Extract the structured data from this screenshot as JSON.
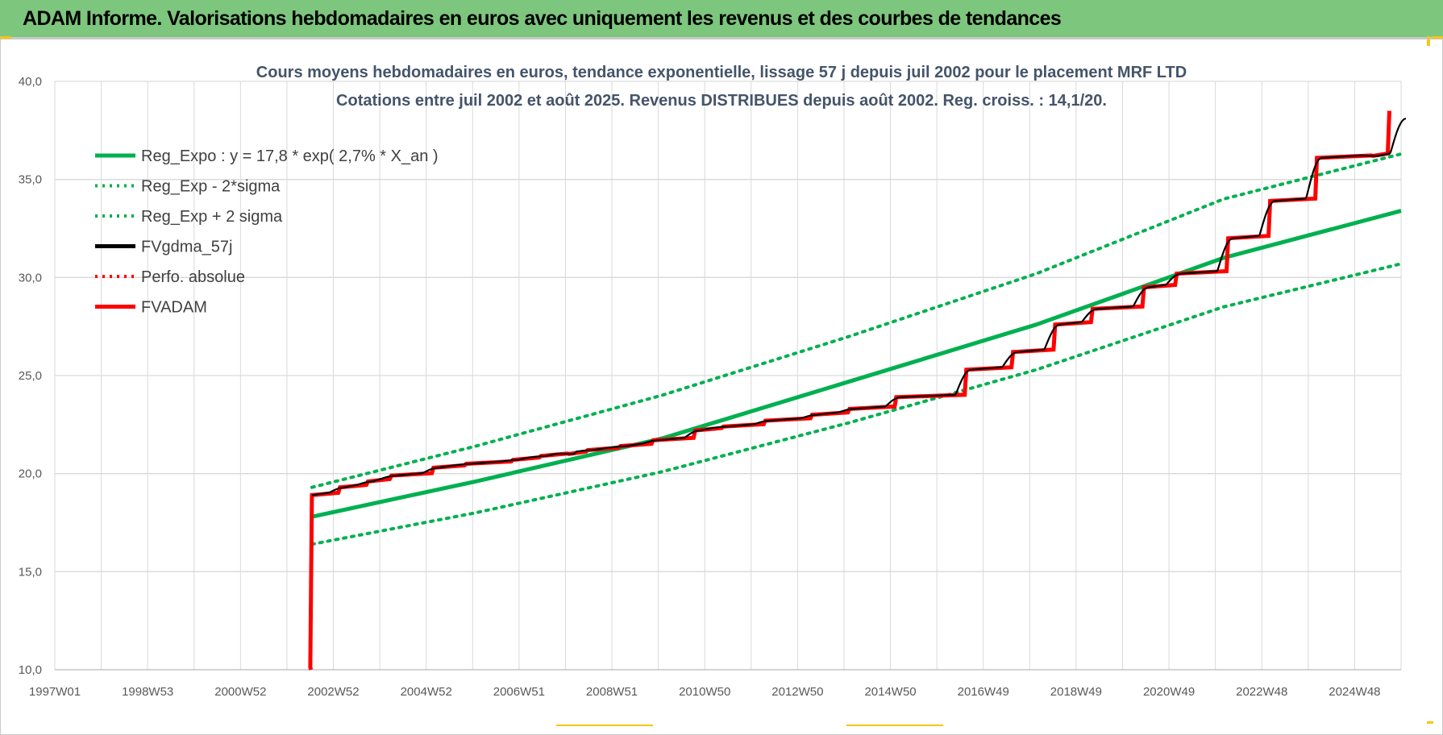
{
  "header": {
    "title": "ADAM Informe. Valorisations hebdomadaires en euros avec uniquement les revenus et des courbes de tendances"
  },
  "colors": {
    "header_bg": "#7dc67d",
    "reg_green": "#00b050",
    "fvgdma_black": "#000000",
    "fvadam_red": "#ff0000",
    "perfo_red": "#ff0000",
    "grid": "#d9d9d9"
  },
  "chart_data": {
    "type": "line",
    "title_line1": "Cours moyens hebdomadaires en euros, tendance exponentielle, lissage 57 j depuis juil 2002 pour le placement MRF LTD",
    "title_line2": "Cotations entre juil 2002 et août 2025. Revenus DISTRIBUES depuis août 2002. Reg. croiss. : 14,1/20.",
    "x_tick_labels": [
      "1997W01",
      "1998W53",
      "2000W52",
      "2002W52",
      "2004W52",
      "2006W51",
      "2008W51",
      "2010W50",
      "2012W50",
      "2014W50",
      "2016W49",
      "2018W49",
      "2020W49",
      "2022W48",
      "2024W48"
    ],
    "xlim": [
      1997.0,
      2025.8
    ],
    "ylim": [
      10,
      40
    ],
    "y_ticks": [
      "10,0",
      "15,0",
      "20,0",
      "25,0",
      "30,0",
      "35,0",
      "40,0"
    ],
    "grid": true,
    "legend_position": "top-left",
    "legend": [
      {
        "label": "Reg_Expo : y = 17,8 * exp( 2,7% *  X_an )",
        "color": "#00b050",
        "style": "solid"
      },
      {
        "label": "Reg_Exp - 2*sigma",
        "color": "#00b050",
        "style": "dotted"
      },
      {
        "label": "Reg_Exp + 2 sigma",
        "color": "#00b050",
        "style": "dotted"
      },
      {
        "label": "FVgdma_57j",
        "color": "#000000",
        "style": "solid"
      },
      {
        "label": "Perfo. absolue",
        "color": "#ff0000",
        "style": "dotted"
      },
      {
        "label": "FVADAM",
        "color": "#ff0000",
        "style": "solid"
      }
    ],
    "series": [
      {
        "name": "Reg_Expo : y = 17,8 * exp( 2,7% *  X_an )",
        "x": [
          2002.5,
          2006.0,
          2010.0,
          2014.0,
          2018.0,
          2022.0,
          2025.8
        ],
        "y": [
          17.8,
          19.6,
          21.8,
          24.7,
          27.6,
          31.0,
          33.4
        ]
      },
      {
        "name": "Reg_Exp - 2*sigma",
        "x": [
          2002.5,
          2006.0,
          2010.0,
          2014.0,
          2018.0,
          2022.0,
          2025.8
        ],
        "y": [
          16.4,
          18.0,
          20.1,
          22.6,
          25.3,
          28.5,
          30.7
        ]
      },
      {
        "name": "Reg_Exp + 2 sigma",
        "x": [
          2002.5,
          2006.0,
          2010.0,
          2014.0,
          2018.0,
          2022.0,
          2025.8
        ],
        "y": [
          19.3,
          21.4,
          24.0,
          27.0,
          30.2,
          34.0,
          36.3
        ]
      },
      {
        "name": "FVADAM",
        "x": [
          2002.48,
          2002.5,
          2003.1,
          2003.7,
          2004.2,
          2005.1,
          2005.8,
          2006.8,
          2007.4,
          2008.0,
          2008.4,
          2009.1,
          2009.8,
          2010.7,
          2011.3,
          2012.2,
          2013.2,
          2014.0,
          2015.0,
          2016.5,
          2017.5,
          2018.4,
          2019.2,
          2020.3,
          2021.0,
          2022.1,
          2023.0,
          2024.0,
          2025.2,
          2025.55
        ],
        "y": [
          10.0,
          18.9,
          19.3,
          19.6,
          19.9,
          20.3,
          20.5,
          20.7,
          20.9,
          21.0,
          21.2,
          21.4,
          21.7,
          22.2,
          22.4,
          22.7,
          23.0,
          23.3,
          23.9,
          25.3,
          26.2,
          27.6,
          28.4,
          29.5,
          30.2,
          32.0,
          33.9,
          36.1,
          36.2,
          38.5
        ]
      },
      {
        "name": "FVgdma_57j",
        "x": [
          2002.5,
          2003.1,
          2003.7,
          2004.2,
          2005.1,
          2005.8,
          2006.8,
          2007.4,
          2008.0,
          2008.4,
          2009.1,
          2009.8,
          2010.7,
          2011.3,
          2012.2,
          2013.2,
          2014.0,
          2015.0,
          2016.5,
          2017.5,
          2018.4,
          2019.2,
          2020.3,
          2021.0,
          2022.1,
          2023.0,
          2024.0,
          2025.2,
          2025.8
        ],
        "y": [
          18.9,
          19.3,
          19.6,
          19.9,
          20.3,
          20.5,
          20.7,
          20.9,
          21.0,
          21.2,
          21.4,
          21.7,
          22.2,
          22.4,
          22.7,
          23.0,
          23.3,
          23.9,
          25.3,
          26.2,
          27.6,
          28.4,
          29.5,
          30.2,
          32.0,
          33.9,
          36.1,
          36.2,
          38.1
        ]
      }
    ]
  }
}
